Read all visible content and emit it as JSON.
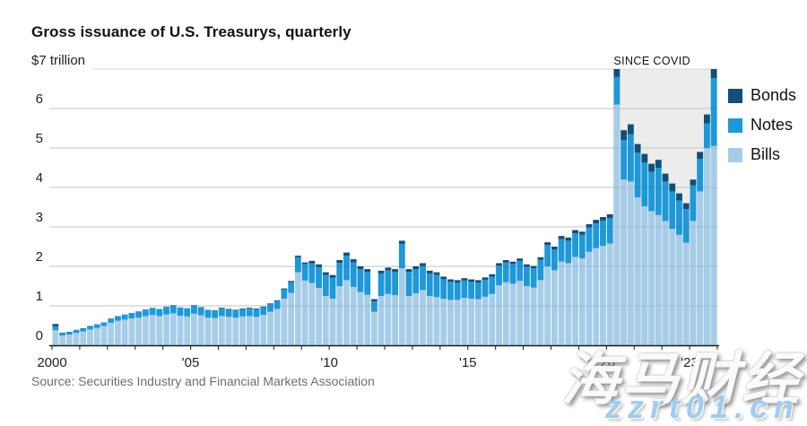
{
  "title": "Gross issuance of U.S. Treasurys, quarterly",
  "source": "Source: Securities Industry and Financial Markets Association",
  "covid_annotation": "SINCE COVID",
  "watermark": {
    "cn_text": "海马财经",
    "url_text": "zzrt01.cn"
  },
  "y_axis": {
    "top_label": "$7 trillion",
    "ticks": [
      0,
      1,
      2,
      3,
      4,
      5,
      6
    ],
    "max": 7
  },
  "x_axis": {
    "labels": [
      {
        "text": "2000",
        "year_offset": 0
      },
      {
        "text": "'05",
        "year_offset": 5
      },
      {
        "text": "'10",
        "year_offset": 10
      },
      {
        "text": "'15",
        "year_offset": 15
      },
      {
        "text": "'20",
        "year_offset": 20
      },
      {
        "text": "'23",
        "year_offset": 23
      }
    ],
    "tick_years": 25
  },
  "legend": [
    {
      "label": "Bonds",
      "color": "#124e78"
    },
    {
      "label": "Notes",
      "color": "#1e98d9"
    },
    {
      "label": "Bills",
      "color": "#a6cde8"
    }
  ],
  "colors": {
    "bills": "#a6cde8",
    "notes": "#1e98d9",
    "bonds": "#124e78",
    "gridline": "#d8d8d8",
    "gridline_overlay": "rgba(40,70,95,0.14)",
    "axis": "#1a1a1a",
    "covid_region": "#ececec",
    "title_text": "#111111",
    "source_text": "#6d6d6d"
  },
  "chart_data": {
    "type": "bar",
    "stacked": true,
    "title": "Gross issuance of U.S. Treasurys, quarterly",
    "unit": "trillion USD",
    "x_start": "2000 Q1",
    "x_end": "2023 Q4",
    "frequency": "quarterly",
    "ylim": [
      0,
      7
    ],
    "grid": true,
    "legend_position": "right",
    "covid_region": {
      "label": "SINCE COVID",
      "start": "2020 Q2",
      "start_index": 81
    },
    "note": "Top bars (2020 Q2 and 2023 Q4) reach the top of the plot at 7 trillion.",
    "series": [
      {
        "name": "Bills",
        "color": "#a6cde8",
        "values": [
          0.38,
          0.25,
          0.27,
          0.31,
          0.35,
          0.4,
          0.44,
          0.49,
          0.57,
          0.62,
          0.65,
          0.68,
          0.7,
          0.74,
          0.77,
          0.74,
          0.78,
          0.81,
          0.75,
          0.73,
          0.8,
          0.76,
          0.7,
          0.69,
          0.74,
          0.72,
          0.7,
          0.73,
          0.74,
          0.72,
          0.77,
          0.85,
          0.92,
          1.18,
          1.33,
          1.85,
          1.64,
          1.58,
          1.45,
          1.25,
          1.18,
          1.5,
          1.65,
          1.48,
          1.35,
          1.28,
          0.85,
          1.25,
          1.3,
          1.27,
          1.95,
          1.25,
          1.32,
          1.4,
          1.25,
          1.22,
          1.18,
          1.15,
          1.15,
          1.2,
          1.18,
          1.17,
          1.23,
          1.3,
          1.52,
          1.6,
          1.56,
          1.63,
          1.5,
          1.46,
          1.65,
          2.0,
          1.9,
          2.12,
          2.08,
          2.24,
          2.2,
          2.37,
          2.46,
          2.52,
          2.58,
          6.1,
          4.2,
          4.15,
          3.75,
          3.52,
          3.4,
          3.3,
          3.15,
          2.95,
          2.8,
          2.6,
          3.15,
          3.9,
          5.0,
          5.05
        ]
      },
      {
        "name": "Notes",
        "color": "#1e98d9",
        "values": [
          0.1,
          0.06,
          0.06,
          0.07,
          0.07,
          0.08,
          0.08,
          0.09,
          0.11,
          0.12,
          0.13,
          0.14,
          0.16,
          0.17,
          0.18,
          0.18,
          0.2,
          0.21,
          0.21,
          0.21,
          0.22,
          0.21,
          0.2,
          0.19,
          0.19,
          0.18,
          0.18,
          0.18,
          0.19,
          0.19,
          0.19,
          0.19,
          0.2,
          0.24,
          0.27,
          0.38,
          0.42,
          0.5,
          0.53,
          0.53,
          0.53,
          0.59,
          0.62,
          0.62,
          0.58,
          0.58,
          0.26,
          0.57,
          0.6,
          0.59,
          0.62,
          0.61,
          0.61,
          0.61,
          0.57,
          0.56,
          0.5,
          0.46,
          0.44,
          0.44,
          0.43,
          0.42,
          0.43,
          0.44,
          0.5,
          0.5,
          0.5,
          0.51,
          0.49,
          0.49,
          0.52,
          0.54,
          0.53,
          0.57,
          0.57,
          0.6,
          0.6,
          0.62,
          0.63,
          0.64,
          0.64,
          0.7,
          1.0,
          1.2,
          1.13,
          1.11,
          1.0,
          1.2,
          1.0,
          0.95,
          0.87,
          0.85,
          0.9,
          0.82,
          0.62,
          1.72
        ]
      },
      {
        "name": "Bonds",
        "color": "#124e78",
        "values": [
          0.06,
          0.01,
          0.01,
          0.01,
          0.01,
          0.01,
          0.01,
          0.0,
          0.0,
          0.0,
          0.0,
          0.0,
          0.0,
          0.0,
          0.0,
          0.0,
          0.0,
          0.0,
          0.0,
          0.0,
          0.0,
          0.0,
          0.0,
          0.01,
          0.02,
          0.02,
          0.02,
          0.02,
          0.02,
          0.02,
          0.02,
          0.02,
          0.02,
          0.02,
          0.03,
          0.04,
          0.04,
          0.06,
          0.07,
          0.07,
          0.07,
          0.07,
          0.08,
          0.08,
          0.07,
          0.07,
          0.06,
          0.07,
          0.07,
          0.07,
          0.08,
          0.07,
          0.07,
          0.07,
          0.07,
          0.07,
          0.06,
          0.06,
          0.06,
          0.06,
          0.06,
          0.06,
          0.06,
          0.06,
          0.06,
          0.06,
          0.06,
          0.06,
          0.06,
          0.06,
          0.06,
          0.07,
          0.07,
          0.08,
          0.08,
          0.08,
          0.08,
          0.08,
          0.09,
          0.09,
          0.1,
          0.2,
          0.25,
          0.25,
          0.22,
          0.22,
          0.2,
          0.2,
          0.2,
          0.2,
          0.18,
          0.15,
          0.15,
          0.18,
          0.23,
          0.23
        ]
      }
    ]
  }
}
